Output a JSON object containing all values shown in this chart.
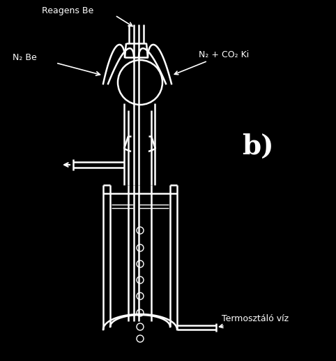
{
  "bg_color": "#000000",
  "line_color": "#ffffff",
  "text_color": "#ffffff",
  "label_b": "b)",
  "label_reagens": "Reagens Be",
  "label_n2_be": "N₂ Be",
  "label_n2_co2": "N₂ + CO₂ Ki",
  "label_termo": "Termosztáló víz",
  "figsize": [
    4.82,
    5.17
  ],
  "dpi": 100
}
